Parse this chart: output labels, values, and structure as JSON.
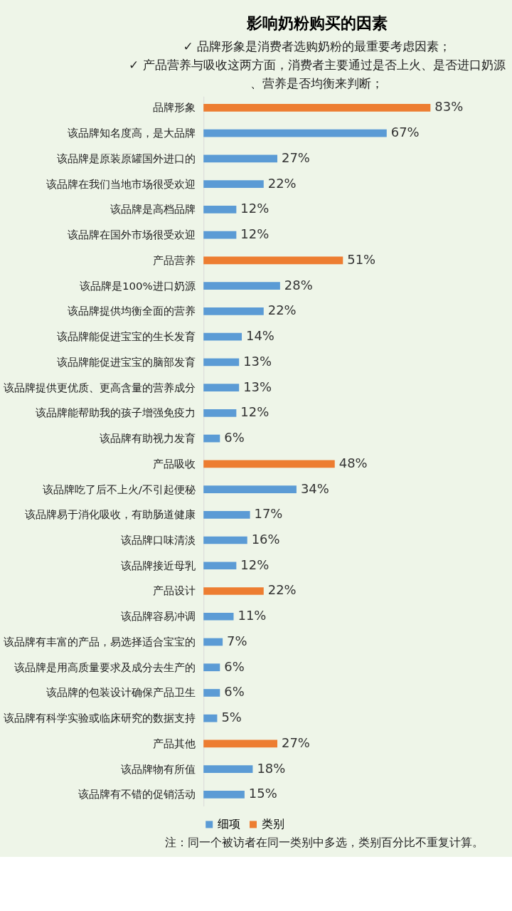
{
  "chart_data": {
    "type": "bar",
    "orientation": "horizontal",
    "title": "影响奶粉购买的因素",
    "annotations": [
      "✓ 品牌形象是消费者选购奶粉的最重要考虑因素；",
      "✓ 产品营养与吸收这两方面，消费者主要通过是否上火、是否进口奶源、营养是否均衡来判断；",
      "注：同一个被访者在同一类别中多选，类别百分比不重复计算。"
    ],
    "categories": [
      "品牌形象",
      "该品牌知名度高，是大品牌",
      "该品牌是原装原罐国外进口的",
      "该品牌在我们当地市场很受欢迎",
      "该品牌是高档品牌",
      "该品牌在国外市场很受欢迎",
      "产品营养",
      "该品牌是100%进口奶源",
      "该品牌提供均衡全面的营养",
      "该品牌能促进宝宝的生长发育",
      "该品牌能促进宝宝的脑部发育",
      "该品牌提供更优质、更高含量的营养成分",
      "该品牌能帮助我的孩子增强免疫力",
      "该品牌有助视力发育",
      "产品吸收",
      "该品牌吃了后不上火/不引起便秘",
      "该品牌易于消化吸收，有助肠道健康",
      "该品牌口味清淡",
      "该品牌接近母乳",
      "产品设计",
      "该品牌容易冲调",
      "该品牌有丰富的产品，易选择适合宝宝的",
      "该品牌是用高质量要求及成分去生产的",
      "该品牌的包装设计确保产品卫生",
      "该品牌有科学实验或临床研究的数据支持",
      "产品其他",
      "该品牌物有所值",
      "该品牌有不错的促销活动"
    ],
    "series": [
      {
        "name": "细项",
        "color": "#5b9bd5",
        "values": [
          null,
          67,
          27,
          22,
          12,
          12,
          null,
          28,
          22,
          14,
          13,
          13,
          12,
          6,
          null,
          34,
          17,
          16,
          12,
          null,
          11,
          7,
          6,
          6,
          5,
          null,
          18,
          15
        ],
        "value_labels": [
          null,
          "67%",
          "27%",
          "22%",
          "12%",
          "12%",
          null,
          "28%",
          "22%",
          "14%",
          "13%",
          "13%",
          "12%",
          "6%",
          null,
          "34%",
          "17%",
          "16%",
          "12%",
          null,
          "11%",
          "7%",
          "6%",
          "6%",
          "5%",
          null,
          "18%",
          "15%"
        ]
      },
      {
        "name": "类别",
        "color": "#ed7d31",
        "values": [
          83,
          null,
          null,
          null,
          null,
          null,
          51,
          null,
          null,
          null,
          null,
          null,
          null,
          null,
          48,
          null,
          null,
          null,
          null,
          22,
          null,
          null,
          null,
          null,
          null,
          27,
          null,
          null
        ],
        "value_labels": [
          "83%",
          null,
          null,
          null,
          null,
          null,
          "51%",
          null,
          null,
          null,
          null,
          null,
          null,
          null,
          "48%",
          null,
          null,
          null,
          null,
          "22%",
          null,
          null,
          null,
          null,
          null,
          "27%",
          null,
          null
        ]
      }
    ],
    "legend": "bottom",
    "grid": false
  }
}
